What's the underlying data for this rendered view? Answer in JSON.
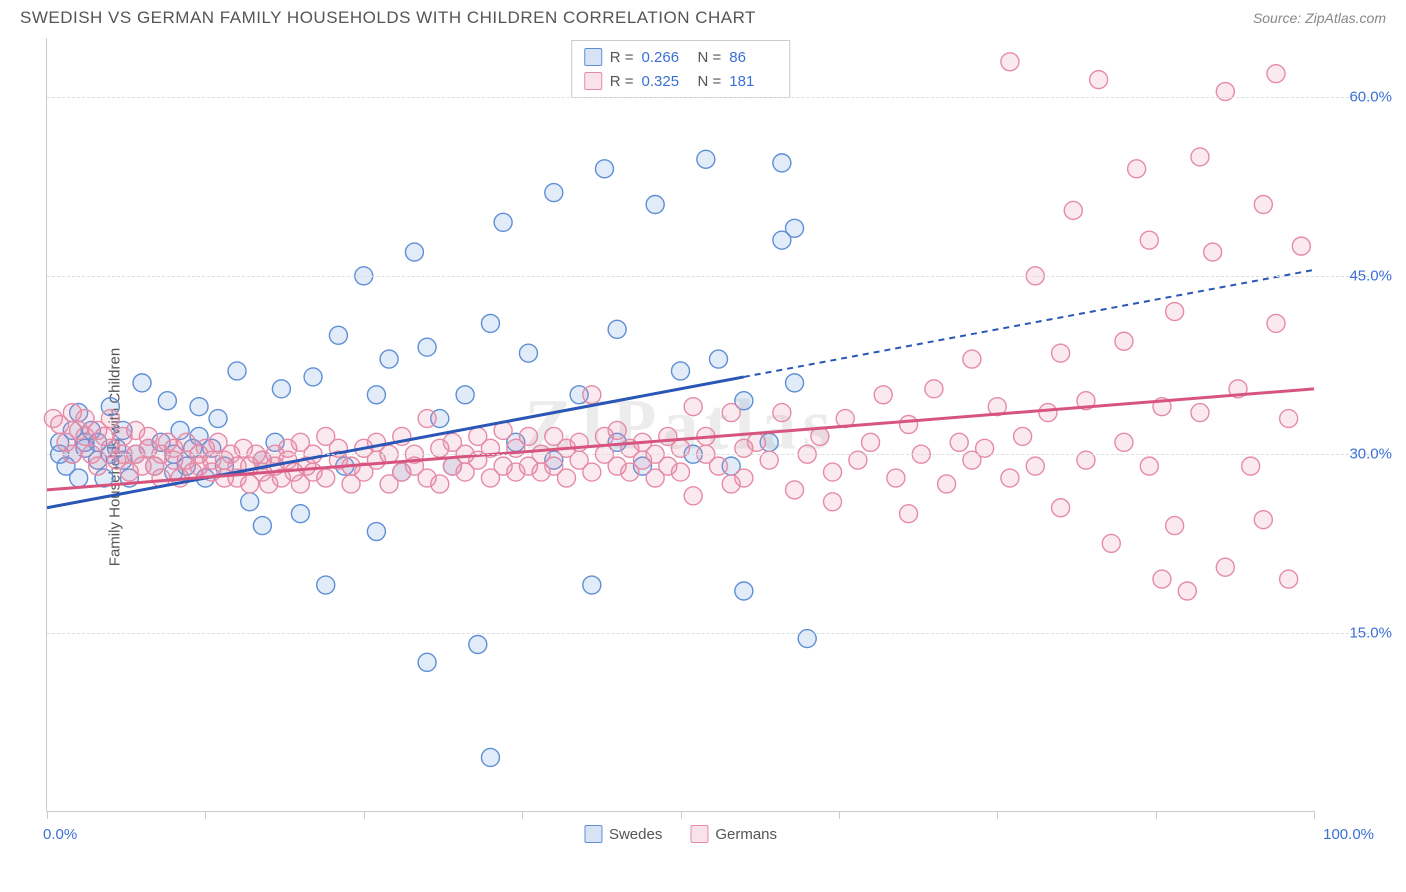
{
  "title": "SWEDISH VS GERMAN FAMILY HOUSEHOLDS WITH CHILDREN CORRELATION CHART",
  "source": "Source: ZipAtlas.com",
  "watermark": "ZIPatlas",
  "ylabel": "Family Households with Children",
  "chart": {
    "type": "scatter-with-regression",
    "background_color": "#ffffff",
    "grid_color": "#dddddd",
    "axis_color": "#cccccc",
    "tick_label_color": "#3b6fd6",
    "xlim": [
      0,
      100
    ],
    "ylim": [
      0,
      65
    ],
    "yticks": [
      15,
      30,
      45,
      60
    ],
    "ytick_labels": [
      "15.0%",
      "30.0%",
      "45.0%",
      "60.0%"
    ],
    "xticks": [
      0,
      12.5,
      25,
      37.5,
      50,
      62.5,
      75,
      87.5,
      100
    ],
    "xlim_labels": {
      "left": "0.0%",
      "right": "100.0%"
    },
    "marker_radius": 9,
    "marker_fill_opacity": 0.18,
    "marker_stroke_width": 1.4,
    "regression_stroke_width": 3
  },
  "series": [
    {
      "id": "swedes",
      "label": "Swedes",
      "color": "#5e8fd6",
      "line_color": "#2a56b5",
      "R": "0.266",
      "N": "86",
      "regression": {
        "x1": 0,
        "y1": 25.5,
        "x2": 55,
        "y2": 36.5,
        "extend_x": 100,
        "extend_y": 45.5,
        "extend_dashed": true
      },
      "points": [
        [
          1,
          30
        ],
        [
          1,
          31
        ],
        [
          1.5,
          29
        ],
        [
          2,
          32
        ],
        [
          2,
          30
        ],
        [
          2.5,
          33.5
        ],
        [
          2.5,
          28
        ],
        [
          3,
          31
        ],
        [
          3,
          30.5
        ],
        [
          3.5,
          32
        ],
        [
          4,
          29.5
        ],
        [
          4,
          31
        ],
        [
          4.5,
          28
        ],
        [
          5,
          30
        ],
        [
          5,
          34
        ],
        [
          5.5,
          30.5
        ],
        [
          6,
          29.5
        ],
        [
          6,
          32
        ],
        [
          6.5,
          28
        ],
        [
          7,
          30
        ],
        [
          7.5,
          36
        ],
        [
          8,
          30.5
        ],
        [
          8.5,
          29
        ],
        [
          9,
          31
        ],
        [
          9.5,
          34.5
        ],
        [
          10,
          28.5
        ],
        [
          10,
          30
        ],
        [
          10.5,
          32
        ],
        [
          11,
          29
        ],
        [
          11.5,
          30.5
        ],
        [
          12,
          31.5
        ],
        [
          12,
          34
        ],
        [
          12.5,
          28
        ],
        [
          13,
          30.5
        ],
        [
          13.5,
          33
        ],
        [
          14,
          29
        ],
        [
          15,
          37
        ],
        [
          16,
          26
        ],
        [
          17,
          29.5
        ],
        [
          17,
          24
        ],
        [
          18,
          31
        ],
        [
          18.5,
          35.5
        ],
        [
          20,
          25
        ],
        [
          21,
          36.5
        ],
        [
          22,
          19
        ],
        [
          23,
          40
        ],
        [
          23.5,
          29
        ],
        [
          25,
          45
        ],
        [
          26,
          35
        ],
        [
          26,
          23.5
        ],
        [
          27,
          38
        ],
        [
          28,
          28.5
        ],
        [
          29,
          47
        ],
        [
          30,
          39
        ],
        [
          30,
          12.5
        ],
        [
          31,
          33
        ],
        [
          32,
          29
        ],
        [
          33,
          35
        ],
        [
          34,
          14
        ],
        [
          35,
          41
        ],
        [
          35,
          4.5
        ],
        [
          36,
          49.5
        ],
        [
          37,
          31
        ],
        [
          38,
          38.5
        ],
        [
          40,
          52
        ],
        [
          40,
          29.5
        ],
        [
          42,
          35
        ],
        [
          43,
          19
        ],
        [
          44,
          54
        ],
        [
          45,
          31
        ],
        [
          45,
          40.5
        ],
        [
          47,
          29
        ],
        [
          48,
          51
        ],
        [
          50,
          37
        ],
        [
          51,
          30
        ],
        [
          52,
          54.8
        ],
        [
          53,
          38
        ],
        [
          54,
          29
        ],
        [
          55,
          34.5
        ],
        [
          55,
          18.5
        ],
        [
          57,
          31
        ],
        [
          58,
          48
        ],
        [
          58,
          54.5
        ],
        [
          59,
          36
        ],
        [
          59,
          49
        ],
        [
          60,
          14.5
        ]
      ]
    },
    {
      "id": "germans",
      "label": "Germans",
      "color": "#e68aa6",
      "line_color": "#d6547e",
      "R": "0.325",
      "N": "181",
      "regression": {
        "x1": 0,
        "y1": 27,
        "x2": 100,
        "y2": 35.5,
        "extend_x": 100,
        "extend_y": 35.5,
        "extend_dashed": false
      },
      "points": [
        [
          0.5,
          33
        ],
        [
          1,
          32.5
        ],
        [
          1.5,
          31
        ],
        [
          2,
          33.5
        ],
        [
          2,
          30
        ],
        [
          2.5,
          32
        ],
        [
          3,
          31.5
        ],
        [
          3,
          33
        ],
        [
          3.5,
          30
        ],
        [
          4,
          32
        ],
        [
          4,
          29
        ],
        [
          4.5,
          31.5
        ],
        [
          5,
          30.5
        ],
        [
          5,
          33
        ],
        [
          5.5,
          29.5
        ],
        [
          6,
          30
        ],
        [
          6,
          31.5
        ],
        [
          6.5,
          28.5
        ],
        [
          7,
          30
        ],
        [
          7,
          32
        ],
        [
          7.5,
          29
        ],
        [
          8,
          30.5
        ],
        [
          8,
          31.5
        ],
        [
          8.5,
          29
        ],
        [
          9,
          30
        ],
        [
          9,
          28
        ],
        [
          9.5,
          31
        ],
        [
          10,
          29.5
        ],
        [
          10,
          30.5
        ],
        [
          10.5,
          28
        ],
        [
          11,
          29.5
        ],
        [
          11,
          31
        ],
        [
          11.5,
          28.5
        ],
        [
          12,
          30
        ],
        [
          12,
          29
        ],
        [
          12.5,
          30.5
        ],
        [
          13,
          28.5
        ],
        [
          13,
          29.5
        ],
        [
          13.5,
          31
        ],
        [
          14,
          28
        ],
        [
          14,
          29.5
        ],
        [
          14.5,
          30
        ],
        [
          15,
          29
        ],
        [
          15,
          28
        ],
        [
          15.5,
          30.5
        ],
        [
          16,
          27.5
        ],
        [
          16,
          29
        ],
        [
          16.5,
          30
        ],
        [
          17,
          28.5
        ],
        [
          17,
          29.5
        ],
        [
          17.5,
          27.5
        ],
        [
          18,
          29
        ],
        [
          18,
          30
        ],
        [
          18.5,
          28
        ],
        [
          19,
          29.5
        ],
        [
          19,
          30.5
        ],
        [
          19.5,
          28.5
        ],
        [
          20,
          31
        ],
        [
          20,
          27.5
        ],
        [
          20.5,
          29
        ],
        [
          21,
          30
        ],
        [
          21,
          28.5
        ],
        [
          22,
          31.5
        ],
        [
          22,
          28
        ],
        [
          23,
          29.5
        ],
        [
          23,
          30.5
        ],
        [
          24,
          27.5
        ],
        [
          24,
          29
        ],
        [
          25,
          30.5
        ],
        [
          25,
          28.5
        ],
        [
          26,
          31
        ],
        [
          26,
          29.5
        ],
        [
          27,
          30
        ],
        [
          27,
          27.5
        ],
        [
          28,
          31.5
        ],
        [
          28,
          28.5
        ],
        [
          29,
          30
        ],
        [
          29,
          29
        ],
        [
          30,
          33
        ],
        [
          30,
          28
        ],
        [
          31,
          30.5
        ],
        [
          31,
          27.5
        ],
        [
          32,
          31
        ],
        [
          32,
          29
        ],
        [
          33,
          30
        ],
        [
          33,
          28.5
        ],
        [
          34,
          31.5
        ],
        [
          34,
          29.5
        ],
        [
          35,
          30.5
        ],
        [
          35,
          28
        ],
        [
          36,
          32
        ],
        [
          36,
          29
        ],
        [
          37,
          30.5
        ],
        [
          37,
          28.5
        ],
        [
          38,
          31.5
        ],
        [
          38,
          29
        ],
        [
          39,
          30
        ],
        [
          39,
          28.5
        ],
        [
          40,
          31.5
        ],
        [
          40,
          29
        ],
        [
          41,
          30.5
        ],
        [
          41,
          28
        ],
        [
          42,
          31
        ],
        [
          42,
          29.5
        ],
        [
          43,
          35
        ],
        [
          43,
          28.5
        ],
        [
          44,
          30
        ],
        [
          44,
          31.5
        ],
        [
          45,
          29
        ],
        [
          45,
          32
        ],
        [
          46,
          28.5
        ],
        [
          46,
          30.5
        ],
        [
          47,
          31
        ],
        [
          47,
          29.5
        ],
        [
          48,
          30
        ],
        [
          48,
          28
        ],
        [
          49,
          31.5
        ],
        [
          49,
          29
        ],
        [
          50,
          30.5
        ],
        [
          50,
          28.5
        ],
        [
          51,
          34
        ],
        [
          51,
          26.5
        ],
        [
          52,
          30
        ],
        [
          52,
          31.5
        ],
        [
          53,
          29
        ],
        [
          54,
          33.5
        ],
        [
          54,
          27.5
        ],
        [
          55,
          30.5
        ],
        [
          55,
          28
        ],
        [
          56,
          31
        ],
        [
          57,
          29.5
        ],
        [
          58,
          33.5
        ],
        [
          59,
          27
        ],
        [
          60,
          30
        ],
        [
          61,
          31.5
        ],
        [
          62,
          28.5
        ],
        [
          62,
          26
        ],
        [
          63,
          33
        ],
        [
          64,
          29.5
        ],
        [
          65,
          31
        ],
        [
          66,
          35
        ],
        [
          67,
          28
        ],
        [
          68,
          32.5
        ],
        [
          68,
          25
        ],
        [
          69,
          30
        ],
        [
          70,
          35.5
        ],
        [
          71,
          27.5
        ],
        [
          72,
          31
        ],
        [
          73,
          29.5
        ],
        [
          73,
          38
        ],
        [
          74,
          30.5
        ],
        [
          75,
          34
        ],
        [
          76,
          28
        ],
        [
          76,
          63
        ],
        [
          77,
          31.5
        ],
        [
          78,
          29
        ],
        [
          78,
          45
        ],
        [
          79,
          33.5
        ],
        [
          80,
          38.5
        ],
        [
          80,
          25.5
        ],
        [
          81,
          50.5
        ],
        [
          82,
          29.5
        ],
        [
          82,
          34.5
        ],
        [
          83,
          61.5
        ],
        [
          84,
          22.5
        ],
        [
          85,
          31
        ],
        [
          85,
          39.5
        ],
        [
          86,
          54
        ],
        [
          87,
          29
        ],
        [
          87,
          48
        ],
        [
          88,
          34
        ],
        [
          88,
          19.5
        ],
        [
          89,
          42
        ],
        [
          89,
          24
        ],
        [
          90,
          18.5
        ],
        [
          91,
          33.5
        ],
        [
          91,
          55
        ],
        [
          92,
          47
        ],
        [
          93,
          20.5
        ],
        [
          93,
          60.5
        ],
        [
          94,
          35.5
        ],
        [
          95,
          29
        ],
        [
          96,
          51
        ],
        [
          96,
          24.5
        ],
        [
          97,
          41
        ],
        [
          97,
          62
        ],
        [
          98,
          33
        ],
        [
          98,
          19.5
        ],
        [
          99,
          47.5
        ]
      ]
    }
  ],
  "r_box_labels": {
    "R": "R =",
    "N": "N ="
  }
}
